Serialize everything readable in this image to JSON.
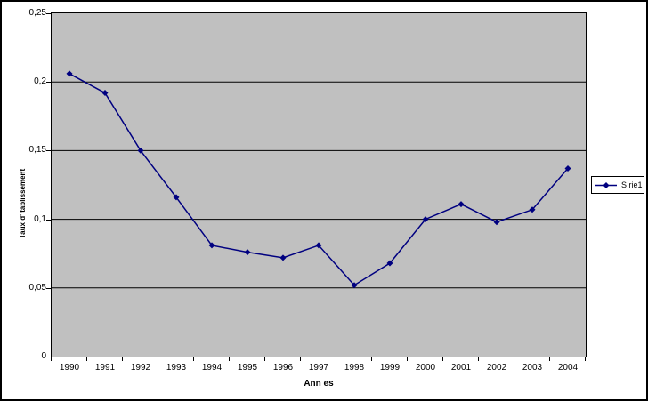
{
  "colors": {
    "series": "#000080",
    "plot_background": "#c0c0c0",
    "gridline": "#000000",
    "chart_background": "#ffffff",
    "border": "#000000",
    "text": "#000000"
  },
  "chart_data": {
    "type": "line",
    "title": "",
    "xlabel": "Ann es",
    "ylabel": "Taux d' tablissement",
    "categories": [
      "1990",
      "1991",
      "1992",
      "1993",
      "1994",
      "1995",
      "1996",
      "1997",
      "1998",
      "1999",
      "2000",
      "2001",
      "2002",
      "2003",
      "2004"
    ],
    "series": [
      {
        "name": "S rie1",
        "values": [
          0.206,
          0.192,
          0.15,
          0.116,
          0.081,
          0.076,
          0.072,
          0.081,
          0.052,
          0.068,
          0.1,
          0.111,
          0.098,
          0.107,
          0.137
        ]
      }
    ],
    "ylim": [
      0,
      0.25
    ],
    "ytick_step": 0.05,
    "ytick_labels": [
      "0",
      "0,05",
      "0,1",
      "0,15",
      "0,2",
      "0,25"
    ],
    "grid": true,
    "legend_position": "right",
    "marker": "diamond"
  }
}
